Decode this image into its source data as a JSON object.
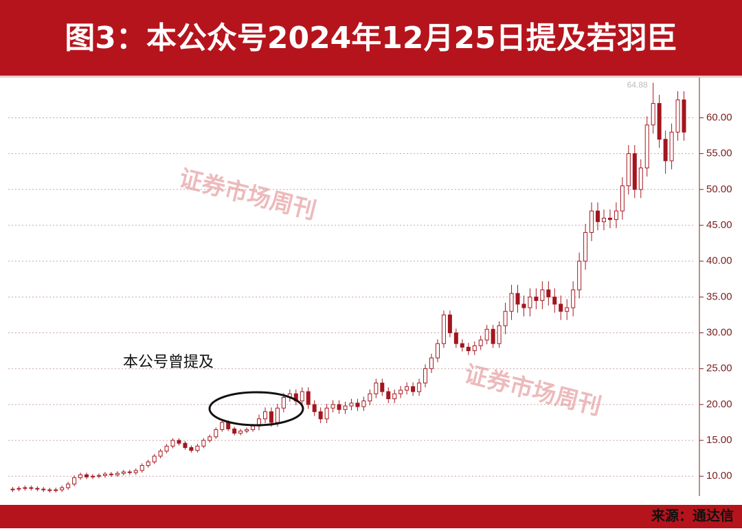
{
  "chart_data": {
    "type": "candlestick",
    "title": "图3：本公众号2024年12月25日提及若羽臣",
    "source": "来源：通达信",
    "annotation": "本公号曾提及",
    "watermark": "证券市场周刊",
    "max_label": "64.88",
    "ylim": [
      6,
      65.6
    ],
    "yticks": [
      {
        "value": 10,
        "label": "10.00"
      },
      {
        "value": 15,
        "label": "15.00"
      },
      {
        "value": 20,
        "label": "20.00"
      },
      {
        "value": 25,
        "label": "25.00"
      },
      {
        "value": 30,
        "label": "30.00"
      },
      {
        "value": 35,
        "label": "35.00"
      },
      {
        "value": 40,
        "label": "40.00"
      },
      {
        "value": 45,
        "label": "45.00"
      },
      {
        "value": 50,
        "label": "50.00"
      },
      {
        "value": 55,
        "label": "55.00"
      },
      {
        "value": 60,
        "label": "60.00"
      }
    ],
    "grid": true,
    "color": "#a3161f",
    "open": [
      8.1,
      8.2,
      8.3,
      8.4,
      8.3,
      8.2,
      8.1,
      8.0,
      8.1,
      8.4,
      8.9,
      9.8,
      10.2,
      9.9,
      10.0,
      10.1,
      10.3,
      10.2,
      10.4,
      10.6,
      10.5,
      10.8,
      11.5,
      12.0,
      12.8,
      13.5,
      14.2,
      15.0,
      14.6,
      14.0,
      13.6,
      14.2,
      15.0,
      15.5,
      16.5,
      17.5,
      16.6,
      16.0,
      16.3,
      16.5,
      17.0,
      18.0,
      19.0,
      17.5,
      19.5,
      21.0,
      21.5,
      20.5,
      21.8,
      20.0,
      19.0,
      18.0,
      19.5,
      20.0,
      19.3,
      19.8,
      20.2,
      19.7,
      20.5,
      21.5,
      23.0,
      21.8,
      20.8,
      21.5,
      22.0,
      22.5,
      21.8,
      23.0,
      25.0,
      26.5,
      28.5,
      32.5,
      30.0,
      28.5,
      28.0,
      27.5,
      28.2,
      29.0,
      30.5,
      28.5,
      31.0,
      33.0,
      35.5,
      34.0,
      33.5,
      35.0,
      34.5,
      36.0,
      35.0,
      34.0,
      33.0,
      33.5,
      36.0,
      40.0,
      44.0,
      47.0,
      45.5,
      46.0,
      45.8,
      47.0,
      50.5,
      55.0,
      50.0,
      53.0,
      59.0,
      62.0,
      57.0,
      54.0,
      58.0,
      62.5
    ],
    "high": [
      8.5,
      8.6,
      8.7,
      8.7,
      8.6,
      8.5,
      8.4,
      8.4,
      8.7,
      9.2,
      10.1,
      10.5,
      10.5,
      10.3,
      10.4,
      10.6,
      10.6,
      10.7,
      10.9,
      10.9,
      11.1,
      11.8,
      12.3,
      13.1,
      13.8,
      14.5,
      15.3,
      15.3,
      14.9,
      14.3,
      14.5,
      15.3,
      15.8,
      16.8,
      17.8,
      17.8,
      16.9,
      16.6,
      16.8,
      17.3,
      18.6,
      19.6,
      19.6,
      20.1,
      21.6,
      22.1,
      22.1,
      22.4,
      22.4,
      20.6,
      19.6,
      20.1,
      20.6,
      20.6,
      20.4,
      20.8,
      20.8,
      21.1,
      22.1,
      23.6,
      23.6,
      22.4,
      22.1,
      22.6,
      23.1,
      23.1,
      23.6,
      25.6,
      27.1,
      29.1,
      33.1,
      33.1,
      30.6,
      29.1,
      28.6,
      28.8,
      29.6,
      31.1,
      31.1,
      31.6,
      34.2,
      36.7,
      36.7,
      35.2,
      36.2,
      36.2,
      37.2,
      37.2,
      36.2,
      35.2,
      34.7,
      37.2,
      41.2,
      45.2,
      48.2,
      48.2,
      47.2,
      47.2,
      48.2,
      51.7,
      56.2,
      56.2,
      54.2,
      60.2,
      64.88,
      63.2,
      58.2,
      59.2,
      63.7,
      63.7
    ],
    "low": [
      7.8,
      7.9,
      8.0,
      8.0,
      7.9,
      7.8,
      7.7,
      7.7,
      7.8,
      8.1,
      8.6,
      9.5,
      9.6,
      9.6,
      9.7,
      9.8,
      9.9,
      9.9,
      10.1,
      10.2,
      10.2,
      10.5,
      11.2,
      11.7,
      12.5,
      13.2,
      13.9,
      14.3,
      13.7,
      13.3,
      13.3,
      13.9,
      14.7,
      15.2,
      16.2,
      16.3,
      15.7,
      15.7,
      16.0,
      16.2,
      16.4,
      17.4,
      16.9,
      16.9,
      18.9,
      20.4,
      19.9,
      19.9,
      19.4,
      18.4,
      17.4,
      17.4,
      18.9,
      18.7,
      18.7,
      19.2,
      19.1,
      19.1,
      19.9,
      20.9,
      21.2,
      20.2,
      20.2,
      20.9,
      21.4,
      21.2,
      21.2,
      22.4,
      24.4,
      25.9,
      27.9,
      29.4,
      27.9,
      27.4,
      26.9,
      26.9,
      27.6,
      28.4,
      27.9,
      27.9,
      29.8,
      31.8,
      32.8,
      32.3,
      32.3,
      33.3,
      33.3,
      33.8,
      32.8,
      31.8,
      31.8,
      32.3,
      34.8,
      38.8,
      42.8,
      44.3,
      44.3,
      44.6,
      44.6,
      45.8,
      49.3,
      48.8,
      48.8,
      51.8,
      57.8,
      55.8,
      52.2,
      52.8,
      56.8,
      56.8
    ],
    "close": [
      8.2,
      8.3,
      8.4,
      8.3,
      8.2,
      8.1,
      8.0,
      8.1,
      8.4,
      8.9,
      9.8,
      10.2,
      9.9,
      10.0,
      10.1,
      10.3,
      10.2,
      10.4,
      10.6,
      10.5,
      10.8,
      11.5,
      12.0,
      12.8,
      13.5,
      14.2,
      15.0,
      14.6,
      14.0,
      13.6,
      14.2,
      15.0,
      15.5,
      16.5,
      17.5,
      16.6,
      16.0,
      16.3,
      16.5,
      17.0,
      18.0,
      19.0,
      17.5,
      19.5,
      21.0,
      21.5,
      20.5,
      21.8,
      20.0,
      19.0,
      18.0,
      19.5,
      20.0,
      19.3,
      19.8,
      20.2,
      19.7,
      20.5,
      21.5,
      23.0,
      21.8,
      20.8,
      21.5,
      22.0,
      22.5,
      21.8,
      23.0,
      25.0,
      26.5,
      28.5,
      32.5,
      30.0,
      28.5,
      28.0,
      27.5,
      28.2,
      29.0,
      30.5,
      28.5,
      31.0,
      33.0,
      35.5,
      34.0,
      33.5,
      35.0,
      34.5,
      36.0,
      35.0,
      34.0,
      33.0,
      33.5,
      36.0,
      40.0,
      44.0,
      47.0,
      45.5,
      46.0,
      45.8,
      47.0,
      50.5,
      55.0,
      50.0,
      53.0,
      59.0,
      62.0,
      57.0,
      54.0,
      58.0,
      62.5,
      58.0
    ]
  }
}
